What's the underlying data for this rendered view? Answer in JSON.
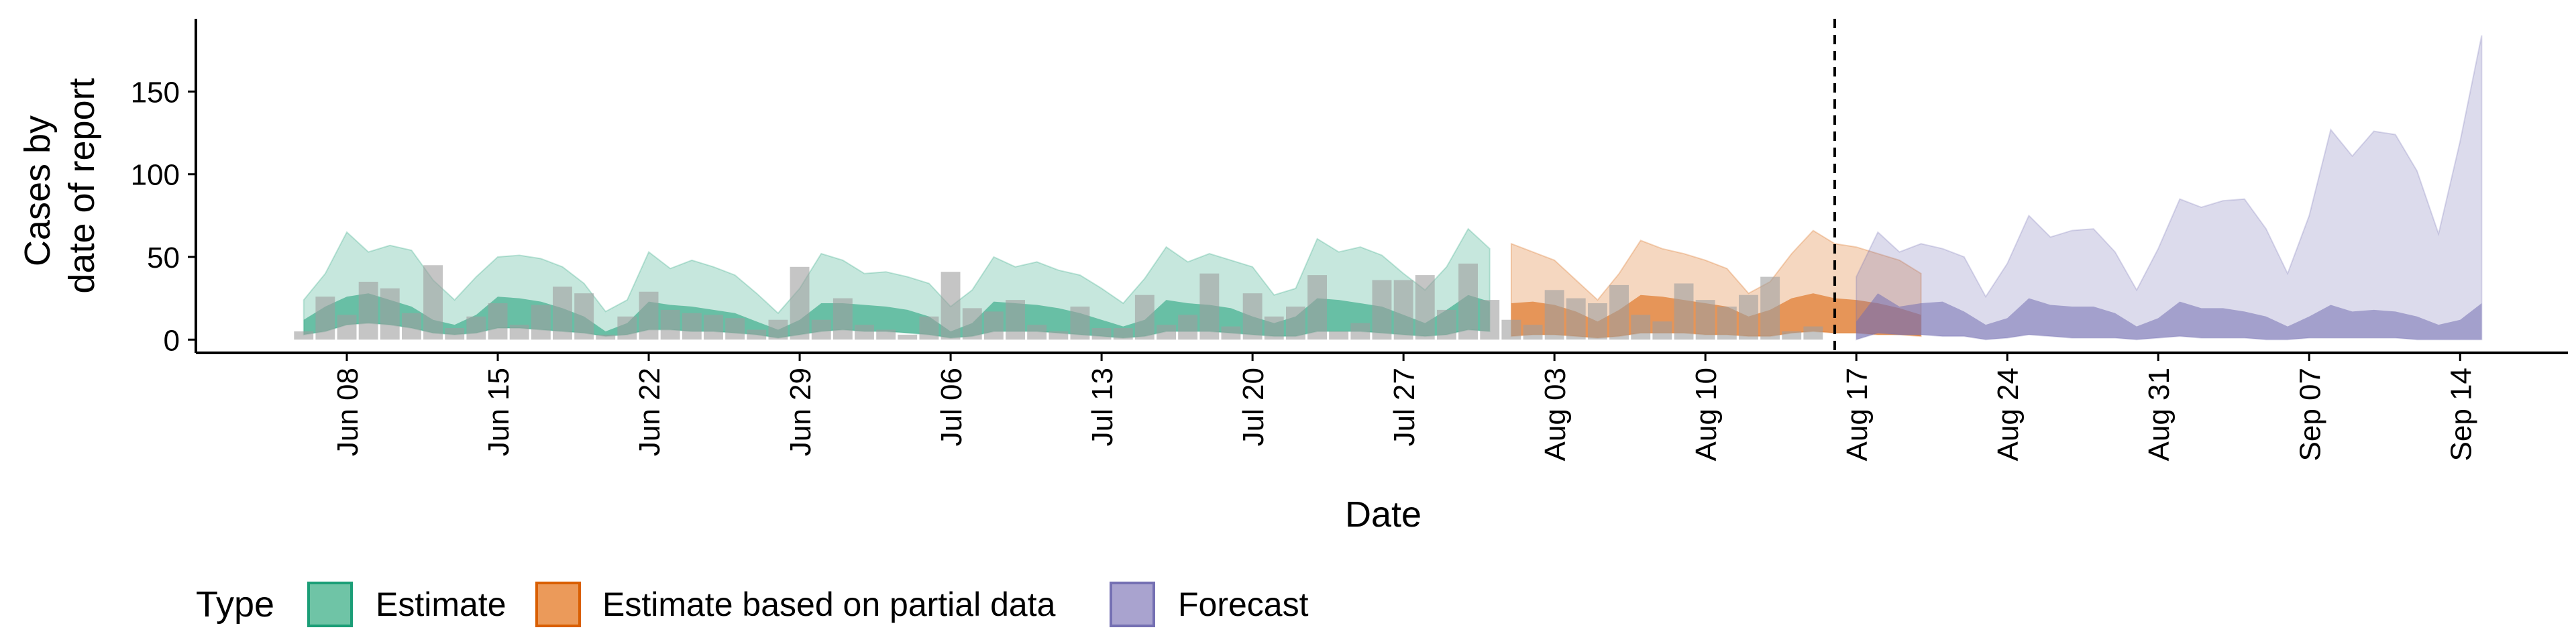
{
  "chart_data": {
    "type": "area",
    "xlabel": "Date",
    "ylabel_lines": [
      "Cases by",
      "date of report"
    ],
    "ylim": [
      -8,
      194
    ],
    "yticks": [
      0,
      50,
      100,
      150
    ],
    "xlim": [
      "2020-06-01",
      "2020-09-19"
    ],
    "xticks": [
      "2020-06-08",
      "2020-06-15",
      "2020-06-22",
      "2020-06-29",
      "2020-07-06",
      "2020-07-13",
      "2020-07-20",
      "2020-07-27",
      "2020-08-03",
      "2020-08-10",
      "2020-08-17",
      "2020-08-24",
      "2020-08-31",
      "2020-09-07",
      "2020-09-14"
    ],
    "xtick_labels": [
      "Jun 08",
      "Jun 15",
      "Jun 22",
      "Jun 29",
      "Jul 06",
      "Jul 13",
      "Jul 20",
      "Jul 27",
      "Aug 03",
      "Aug 10",
      "Aug 17",
      "Aug 24",
      "Aug 31",
      "Sep 07",
      "Sep 14"
    ],
    "reference_line": "2020-08-16",
    "legend": {
      "title": "Type",
      "position": "bottom",
      "entries": [
        {
          "label": "Estimate",
          "fill": "#6fc4a6",
          "stroke": "#1b9e77"
        },
        {
          "label": "Estimate based on partial data",
          "fill": "#eb9a5a",
          "stroke": "#d95f02"
        },
        {
          "label": "Forecast",
          "fill": "#a9a3cf",
          "stroke": "#7570b3"
        }
      ]
    },
    "colors": {
      "Estimate": "#1b9e77",
      "Estimate based on partial data": "#d95f02",
      "Forecast": "#7570b3",
      "bars": "#9e9e9e"
    },
    "observed_bars": {
      "dates": [
        "2020-06-06",
        "2020-06-07",
        "2020-06-08",
        "2020-06-09",
        "2020-06-10",
        "2020-06-11",
        "2020-06-12",
        "2020-06-13",
        "2020-06-14",
        "2020-06-15",
        "2020-06-16",
        "2020-06-17",
        "2020-06-18",
        "2020-06-19",
        "2020-06-20",
        "2020-06-21",
        "2020-06-22",
        "2020-06-23",
        "2020-06-24",
        "2020-06-25",
        "2020-06-26",
        "2020-06-27",
        "2020-06-28",
        "2020-06-29",
        "2020-06-30",
        "2020-07-01",
        "2020-07-02",
        "2020-07-03",
        "2020-07-04",
        "2020-07-05",
        "2020-07-06",
        "2020-07-07",
        "2020-07-08",
        "2020-07-09",
        "2020-07-10",
        "2020-07-11",
        "2020-07-12",
        "2020-07-13",
        "2020-07-14",
        "2020-07-15",
        "2020-07-16",
        "2020-07-17",
        "2020-07-18",
        "2020-07-19",
        "2020-07-20",
        "2020-07-21",
        "2020-07-22",
        "2020-07-23",
        "2020-07-24",
        "2020-07-25",
        "2020-07-26",
        "2020-07-27",
        "2020-07-28",
        "2020-07-29",
        "2020-07-30",
        "2020-07-31",
        "2020-08-01",
        "2020-08-02",
        "2020-08-03",
        "2020-08-04",
        "2020-08-05",
        "2020-08-06",
        "2020-08-07",
        "2020-08-08",
        "2020-08-09",
        "2020-08-10",
        "2020-08-11",
        "2020-08-12",
        "2020-08-13",
        "2020-08-14",
        "2020-08-15"
      ],
      "values": [
        5,
        26,
        15,
        35,
        31,
        16,
        45,
        7,
        14,
        22,
        9,
        21,
        32,
        28,
        3,
        14,
        29,
        18,
        16,
        15,
        13,
        6,
        12,
        44,
        12,
        25,
        9,
        6,
        3,
        14,
        41,
        19,
        17,
        24,
        9,
        5,
        20,
        7,
        7,
        27,
        9,
        15,
        40,
        8,
        28,
        14,
        20,
        39,
        5,
        10,
        36,
        36,
        39,
        18,
        46,
        24,
        12,
        9,
        30,
        25,
        22,
        33,
        15,
        11,
        34,
        24,
        20,
        27,
        38,
        5,
        8
      ]
    },
    "series": [
      {
        "name": "Estimate",
        "start": "2020-06-06",
        "upper": [
          24,
          40,
          65,
          53,
          57,
          54,
          36,
          24,
          38,
          50,
          51,
          49,
          44,
          34,
          17,
          24,
          53,
          43,
          48,
          44,
          39,
          28,
          16,
          31,
          52,
          48,
          40,
          41,
          38,
          34,
          20,
          30,
          50,
          44,
          47,
          42,
          39,
          31,
          22,
          37,
          56,
          47,
          52,
          48,
          44,
          27,
          31,
          61,
          53,
          56,
          51,
          40,
          30,
          44,
          67,
          55
        ],
        "mid_upper": [
          12,
          20,
          26,
          28,
          24,
          20,
          12,
          9,
          15,
          26,
          25,
          23,
          19,
          14,
          5,
          10,
          23,
          21,
          20,
          18,
          16,
          11,
          6,
          12,
          22,
          22,
          21,
          20,
          18,
          14,
          5,
          10,
          23,
          22,
          21,
          19,
          16,
          12,
          8,
          12,
          24,
          22,
          21,
          19,
          14,
          10,
          14,
          25,
          24,
          22,
          20,
          15,
          10,
          18,
          27,
          23
        ],
        "lower": [
          3,
          5,
          9,
          10,
          9,
          7,
          4,
          3,
          4,
          7,
          7,
          6,
          5,
          4,
          2,
          3,
          6,
          6,
          5,
          5,
          4,
          3,
          1,
          3,
          5,
          6,
          5,
          5,
          4,
          3,
          1,
          2,
          5,
          5,
          5,
          4,
          3,
          2,
          1,
          2,
          5,
          5,
          5,
          4,
          3,
          2,
          2,
          5,
          5,
          5,
          4,
          3,
          2,
          3,
          6,
          5
        ]
      },
      {
        "name": "Estimate based on partial data",
        "start": "2020-08-01",
        "upper": [
          58,
          53,
          48,
          36,
          24,
          40,
          60,
          55,
          52,
          48,
          43,
          28,
          35,
          52,
          66,
          58,
          56,
          52,
          48,
          40
        ],
        "mid_upper": [
          22,
          23,
          21,
          17,
          11,
          18,
          27,
          26,
          24,
          22,
          20,
          14,
          18,
          25,
          28,
          25,
          24,
          22,
          19,
          15
        ],
        "lower": [
          2,
          3,
          3,
          2,
          1,
          2,
          4,
          4,
          4,
          3,
          3,
          2,
          2,
          4,
          5,
          4,
          4,
          3,
          3,
          2
        ]
      },
      {
        "name": "Forecast",
        "start": "2020-08-17",
        "upper": [
          38,
          65,
          53,
          58,
          55,
          50,
          26,
          46,
          75,
          62,
          66,
          67,
          53,
          30,
          55,
          85,
          80,
          84,
          85,
          67,
          40,
          75,
          127,
          111,
          126,
          124,
          102,
          64,
          120,
          184
        ],
        "mid_upper": [
          11,
          28,
          20,
          22,
          23,
          17,
          9,
          13,
          25,
          21,
          20,
          20,
          16,
          8,
          13,
          23,
          19,
          19,
          17,
          14,
          8,
          14,
          21,
          17,
          18,
          17,
          14,
          9,
          12,
          22
        ],
        "lower": [
          0,
          4,
          3,
          3,
          2,
          2,
          0,
          1,
          3,
          2,
          1,
          1,
          1,
          0,
          1,
          2,
          1,
          1,
          1,
          0,
          0,
          1,
          1,
          1,
          1,
          1,
          0,
          0,
          0,
          0
        ]
      }
    ]
  }
}
